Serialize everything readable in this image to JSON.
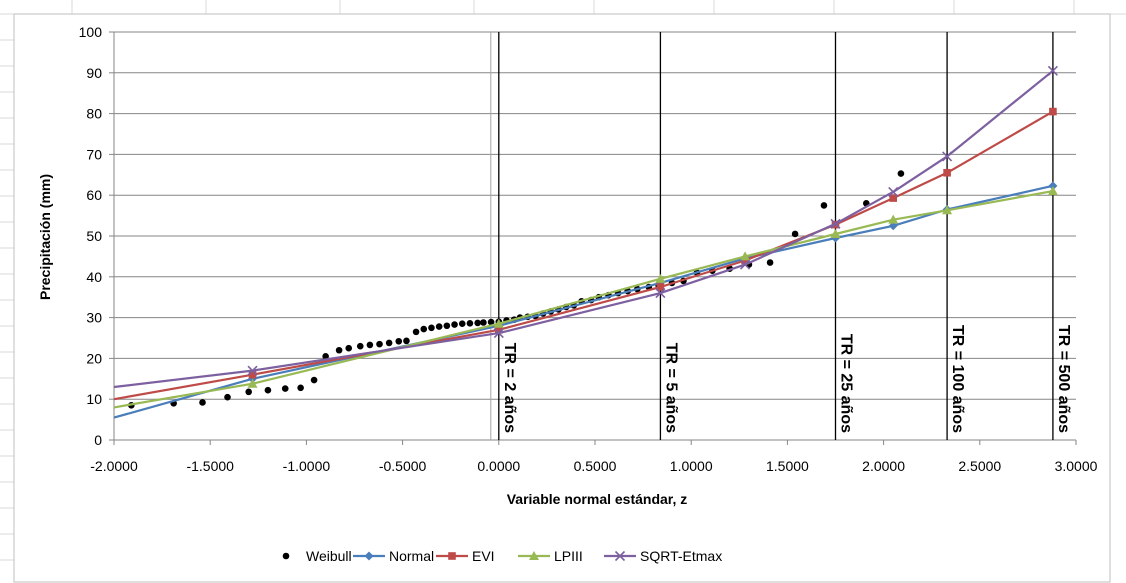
{
  "chart_data": {
    "type": "scatter",
    "xlabel": "Variable normal estándar, z",
    "ylabel": "Precipitación (mm)",
    "xlim": [
      -2.0,
      3.0
    ],
    "ylim": [
      0,
      100
    ],
    "x_ticks": [
      "-2.0000",
      "-1.5000",
      "-1.0000",
      "-0.5000",
      "0.0000",
      "0.5000",
      "1.0000",
      "1.5000",
      "2.0000",
      "2.5000",
      "3.0000"
    ],
    "y_ticks": [
      "0",
      "10",
      "20",
      "30",
      "40",
      "50",
      "60",
      "70",
      "80",
      "90",
      "100"
    ],
    "grid": "horizontal",
    "legend_position": "bottom",
    "return_period_lines": [
      {
        "x": 0.0,
        "label": "TR = 2 años"
      },
      {
        "x": 0.84,
        "label": "TR = 5 años"
      },
      {
        "x": 1.75,
        "label": "TR = 25 años"
      },
      {
        "x": 2.33,
        "label": "TR = 100 años"
      },
      {
        "x": 2.88,
        "label": "TR = 500 años"
      }
    ],
    "series": [
      {
        "name": "Weibull",
        "kind": "points",
        "color": "#000000",
        "x": [
          -1.91,
          -1.69,
          -1.54,
          -1.41,
          -1.3,
          -1.2,
          -1.11,
          -1.03,
          -0.96,
          -0.9,
          -0.83,
          -0.78,
          -0.72,
          -0.67,
          -0.62,
          -0.57,
          -0.52,
          -0.48,
          -0.43,
          -0.39,
          -0.35,
          -0.31,
          -0.27,
          -0.23,
          -0.19,
          -0.15,
          -0.11,
          -0.08,
          -0.04,
          0.0,
          0.04,
          0.08,
          0.11,
          0.15,
          0.19,
          0.23,
          0.27,
          0.31,
          0.35,
          0.39,
          0.43,
          0.48,
          0.52,
          0.57,
          0.62,
          0.67,
          0.72,
          0.78,
          0.83,
          0.9,
          0.96,
          1.03,
          1.11,
          1.2,
          1.3,
          1.41,
          1.54,
          1.69,
          1.91,
          2.09
        ],
        "y": [
          8.5,
          9.0,
          9.2,
          10.5,
          11.8,
          12.2,
          12.6,
          12.8,
          14.7,
          20.5,
          22.0,
          22.5,
          23.0,
          23.3,
          23.5,
          23.8,
          24.2,
          24.3,
          26.5,
          27.2,
          27.5,
          27.8,
          28.0,
          28.3,
          28.5,
          28.6,
          28.7,
          28.8,
          28.9,
          29.0,
          29.3,
          29.5,
          30.0,
          30.2,
          30.4,
          31.0,
          31.5,
          32.0,
          32.6,
          33.0,
          34.0,
          34.3,
          35.0,
          35.5,
          36.0,
          36.5,
          37.0,
          37.5,
          38.0,
          38.5,
          39.0,
          41.0,
          41.5,
          42.0,
          43.0,
          43.5,
          50.5,
          57.5,
          58.0,
          65.3
        ]
      },
      {
        "name": "Normal",
        "kind": "line",
        "color": "#4A7EBB",
        "marker": "diamond",
        "x": [
          -2.0,
          -1.28,
          0.0,
          0.84,
          1.28,
          1.75,
          2.05,
          2.33,
          2.88
        ],
        "y": [
          5.5,
          15.0,
          28.0,
          38.5,
          44.5,
          49.5,
          52.5,
          56.5,
          62.3
        ]
      },
      {
        "name": "EVI",
        "kind": "line",
        "color": "#BE4B48",
        "marker": "square",
        "x": [
          -2.0,
          -1.28,
          0.0,
          0.84,
          1.28,
          1.75,
          2.05,
          2.33,
          2.88
        ],
        "y": [
          10.0,
          16.0,
          27.0,
          37.5,
          44.0,
          52.8,
          59.3,
          65.5,
          80.5
        ]
      },
      {
        "name": "LPIII",
        "kind": "line",
        "color": "#98B954",
        "marker": "triangle",
        "x": [
          -2.0,
          -1.28,
          0.0,
          0.84,
          1.28,
          1.75,
          2.05,
          2.33,
          2.88
        ],
        "y": [
          8.0,
          13.8,
          28.5,
          39.5,
          45.0,
          50.5,
          54.0,
          56.3,
          61.0
        ]
      },
      {
        "name": "SQRT-Etmax",
        "kind": "line",
        "color": "#7D60A0",
        "marker": "x",
        "x": [
          -2.0,
          -1.28,
          0.0,
          0.84,
          1.28,
          1.75,
          2.05,
          2.33,
          2.88
        ],
        "y": [
          13.0,
          17.0,
          26.2,
          36.0,
          43.0,
          53.0,
          60.8,
          69.5,
          90.5
        ]
      }
    ]
  }
}
